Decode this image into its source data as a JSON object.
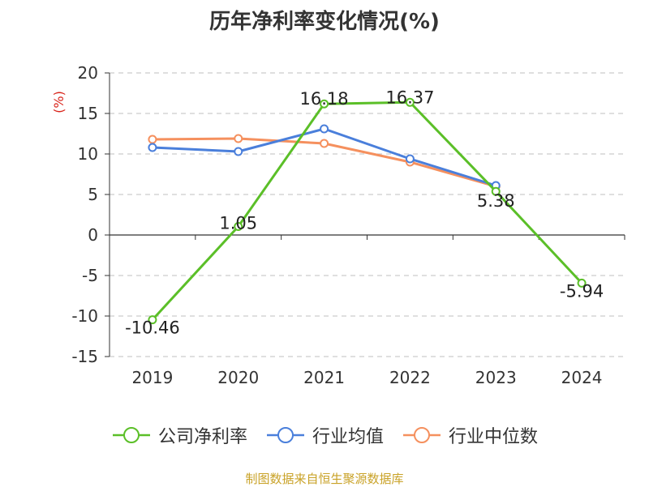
{
  "title": "历年净利率变化情况(%)",
  "source": "制图数据来自恒生聚源数据库",
  "chart_data": {
    "type": "line",
    "title": "历年净利率变化情况(%)",
    "ylabel": "(%)",
    "xlabel": "",
    "categories": [
      "2019",
      "2020",
      "2021",
      "2022",
      "2023",
      "2024"
    ],
    "ylim": [
      -15,
      20
    ],
    "yticks": [
      20,
      15,
      10,
      5,
      0,
      -5,
      -10,
      -15
    ],
    "grid": true,
    "legend_position": "bottom",
    "series": [
      {
        "name": "公司净利率",
        "color": "#5bbf28",
        "values": [
          -10.46,
          1.05,
          16.18,
          16.37,
          5.38,
          -5.94
        ],
        "labels": [
          "-10.46",
          "1.05",
          "16.18",
          "16.37",
          "5.38",
          "-5.94"
        ]
      },
      {
        "name": "行业均值",
        "color": "#4a7fdb",
        "values": [
          10.8,
          10.3,
          13.1,
          9.4,
          6.1,
          null
        ]
      },
      {
        "name": "行业中位数",
        "color": "#f5905e",
        "values": [
          11.8,
          11.9,
          11.3,
          9.0,
          6.0,
          null
        ]
      }
    ]
  }
}
